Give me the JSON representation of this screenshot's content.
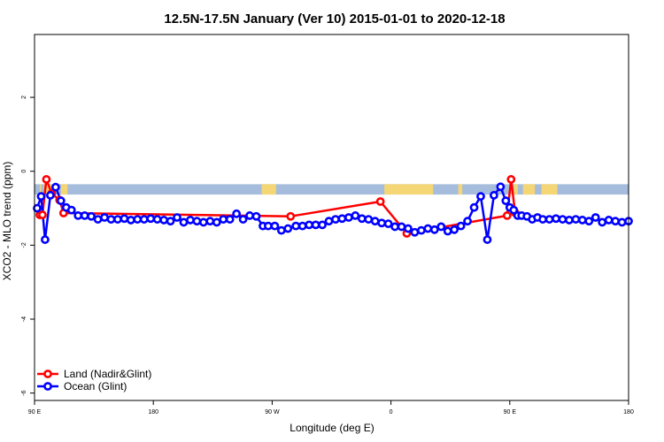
{
  "chart_data": {
    "type": "line",
    "title": "12.5N-17.5N January (Ver 10)   2015-01-01 to 2020-12-18",
    "xlabel": "Longitude (deg E)",
    "ylabel": "XCO2 - MLO trend (ppm)",
    "xlim": [
      90,
      540
    ],
    "ylim": [
      -6.2,
      3.7
    ],
    "xticks": [
      {
        "value": 90,
        "label": "90 E"
      },
      {
        "value": 180,
        "label": "180"
      },
      {
        "value": 270,
        "label": "90 W"
      },
      {
        "value": 360,
        "label": "0"
      },
      {
        "value": 450,
        "label": "90 E"
      },
      {
        "value": 540,
        "label": "180"
      }
    ],
    "yticks": [
      {
        "value": -6,
        "label": "-6"
      },
      {
        "value": -4,
        "label": "-4"
      },
      {
        "value": -2,
        "label": "-2"
      },
      {
        "value": 0,
        "label": "0"
      },
      {
        "value": 2,
        "label": "2"
      }
    ],
    "landmask": {
      "ocean_color": "#a6bcdc",
      "land_color": "#f4d674",
      "y_range": [
        -0.63,
        -0.35
      ],
      "land_segments": [
        [
          94,
          95
        ],
        [
          97,
          105
        ],
        [
          110,
          115
        ],
        [
          262,
          273
        ],
        [
          355,
          392
        ],
        [
          411,
          414
        ],
        [
          453,
          456
        ],
        [
          460,
          469
        ],
        [
          474,
          486
        ]
      ]
    },
    "series": [
      {
        "name": "Land (Nadir&Glint)",
        "color": "#ff0000",
        "x": [
          94,
          96,
          99,
          103,
          109,
          112,
          284,
          352,
          372,
          448,
          451,
          454
        ],
        "values": [
          -1.18,
          -1.18,
          -0.22,
          -0.6,
          -0.78,
          -1.13,
          -1.22,
          -0.82,
          -1.68,
          -1.2,
          -0.22,
          -1.12
        ]
      },
      {
        "name": "Ocean (Glint)",
        "color": "#0000ff",
        "x": [
          92,
          95,
          98,
          102,
          106,
          110,
          114,
          118,
          123,
          128,
          133,
          138,
          143,
          148,
          153,
          158,
          163,
          168,
          173,
          178,
          183,
          188,
          193,
          198,
          203,
          208,
          213,
          218,
          223,
          228,
          233,
          238,
          243,
          248,
          253,
          258,
          263,
          267,
          272,
          277,
          282,
          288,
          293,
          298,
          303,
          308,
          313,
          318,
          323,
          328,
          333,
          338,
          343,
          348,
          353,
          358,
          363,
          368,
          373,
          378,
          383,
          388,
          393,
          398,
          403,
          408,
          413,
          418,
          423,
          428,
          433,
          438,
          443,
          447,
          450,
          453,
          456,
          459,
          463,
          467,
          471,
          475,
          480,
          485,
          490,
          495,
          500,
          505,
          510,
          515,
          520,
          525,
          530,
          535,
          540
        ],
        "values": [
          -1.0,
          -0.68,
          -1.85,
          -0.65,
          -0.43,
          -0.8,
          -0.98,
          -1.05,
          -1.2,
          -1.2,
          -1.22,
          -1.3,
          -1.25,
          -1.3,
          -1.3,
          -1.28,
          -1.32,
          -1.3,
          -1.3,
          -1.28,
          -1.3,
          -1.32,
          -1.35,
          -1.25,
          -1.38,
          -1.32,
          -1.35,
          -1.38,
          -1.35,
          -1.38,
          -1.3,
          -1.3,
          -1.15,
          -1.3,
          -1.2,
          -1.22,
          -1.48,
          -1.48,
          -1.48,
          -1.6,
          -1.55,
          -1.48,
          -1.48,
          -1.45,
          -1.45,
          -1.45,
          -1.35,
          -1.3,
          -1.28,
          -1.25,
          -1.2,
          -1.28,
          -1.3,
          -1.35,
          -1.4,
          -1.42,
          -1.5,
          -1.5,
          -1.55,
          -1.65,
          -1.6,
          -1.55,
          -1.58,
          -1.5,
          -1.62,
          -1.58,
          -1.48,
          -1.35,
          -0.98,
          -0.68,
          -1.85,
          -0.65,
          -0.42,
          -0.8,
          -0.98,
          -1.05,
          -1.2,
          -1.2,
          -1.22,
          -1.3,
          -1.25,
          -1.3,
          -1.3,
          -1.28,
          -1.3,
          -1.32,
          -1.3,
          -1.32,
          -1.35,
          -1.25,
          -1.38,
          -1.32,
          -1.35,
          -1.38,
          -1.35
        ]
      }
    ],
    "legend": "bottom-left",
    "grid": false
  }
}
